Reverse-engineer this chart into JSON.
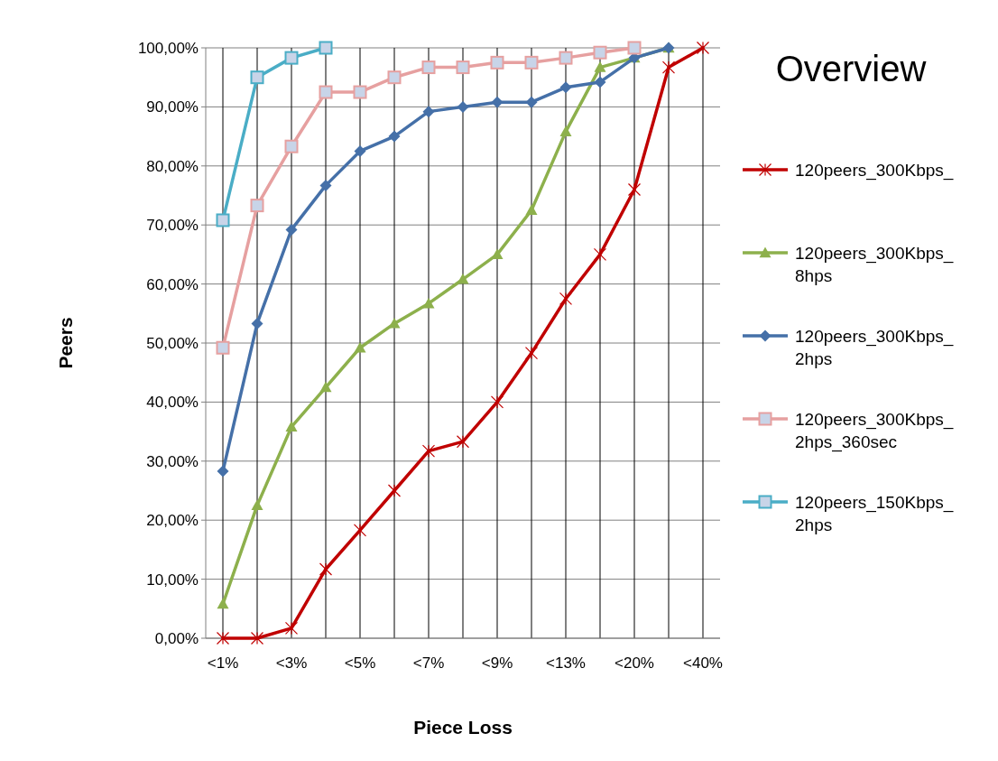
{
  "chart_data": {
    "type": "line",
    "title": "Overview",
    "xlabel": "Piece Loss",
    "ylabel": "Peers",
    "categories": [
      "<1%",
      null,
      "<3%",
      null,
      "<5%",
      null,
      "<7%",
      null,
      "<9%",
      null,
      "<13%",
      null,
      "<20%",
      null,
      "<40%"
    ],
    "series": [
      {
        "name": "120peers_300Kbps_",
        "color": "#c00000",
        "marker": "cross",
        "values": [
          0,
          0,
          1.7,
          11.7,
          18.3,
          25,
          31.7,
          33.3,
          40,
          48.3,
          57.5,
          65,
          76,
          96.7,
          100
        ]
      },
      {
        "name": "120peers_300Kbps_8hps",
        "color": "#8db04c",
        "marker": "triangle",
        "values": [
          5.8,
          22.5,
          35.8,
          42.5,
          49.2,
          53.3,
          56.7,
          60.8,
          65,
          72.5,
          85.8,
          96.7,
          98.3,
          100,
          null
        ]
      },
      {
        "name": "120peers_300Kbps_2hps",
        "color": "#4570a8",
        "marker": "diamond",
        "values": [
          28.3,
          53.3,
          69.2,
          76.7,
          82.5,
          85,
          89.2,
          90,
          90.8,
          90.8,
          93.3,
          94.2,
          98.3,
          100,
          null
        ]
      },
      {
        "name": "120peers_300Kbps_2hps_360sec",
        "color": "#e6a0a0",
        "marker": "square",
        "values": [
          49.2,
          73.3,
          83.3,
          92.5,
          92.5,
          95,
          96.7,
          96.7,
          97.5,
          97.5,
          98.3,
          99.2,
          100,
          null,
          null
        ]
      },
      {
        "name": "120peers_150Kbps_2hps",
        "color": "#4aadc6",
        "marker": "square",
        "values": [
          70.8,
          95,
          98.3,
          100,
          null,
          null,
          null,
          null,
          null,
          null,
          null,
          null,
          null,
          null,
          null
        ]
      }
    ],
    "ylim": [
      0,
      100
    ],
    "yticks": [
      {
        "value": 0,
        "label": "0,00%"
      },
      {
        "value": 10,
        "label": "10,00%"
      },
      {
        "value": 20,
        "label": "20,00%"
      },
      {
        "value": 30,
        "label": "30,00%"
      },
      {
        "value": 40,
        "label": "40,00%"
      },
      {
        "value": 50,
        "label": "50,00%"
      },
      {
        "value": 60,
        "label": "60,00%"
      },
      {
        "value": 70,
        "label": "70,00%"
      },
      {
        "value": 80,
        "label": "80,00%"
      },
      {
        "value": 90,
        "label": "90,00%"
      },
      {
        "value": 100,
        "label": "100,00%"
      }
    ],
    "grid": true,
    "legend": "right",
    "line_style": "solid"
  }
}
